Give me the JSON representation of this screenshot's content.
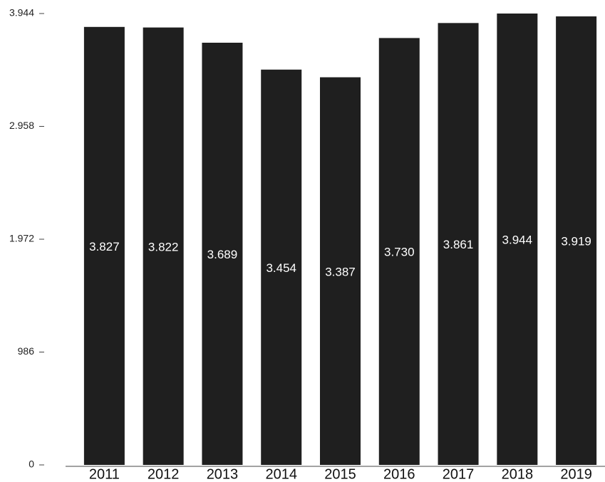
{
  "chart_data": {
    "type": "bar",
    "categories": [
      "2011",
      "2012",
      "2013",
      "2014",
      "2015",
      "2016",
      "2017",
      "2018",
      "2019"
    ],
    "values": [
      3827,
      3822,
      3689,
      3454,
      3387,
      3730,
      3861,
      3944,
      3919
    ],
    "value_labels": [
      "3.827",
      "3.822",
      "3.689",
      "3.454",
      "3.387",
      "3.730",
      "3.861",
      "3.944",
      "3.919"
    ],
    "color": "#1f1f1f",
    "ylim": [
      0,
      3944
    ],
    "yticks": [
      0,
      986,
      {
        "value": 1972,
        "label": "1.972"
      },
      {
        "value": 2958,
        "label": "2.958"
      },
      {
        "value": 3944,
        "label": "3.944"
      }
    ],
    "grid": false
  }
}
